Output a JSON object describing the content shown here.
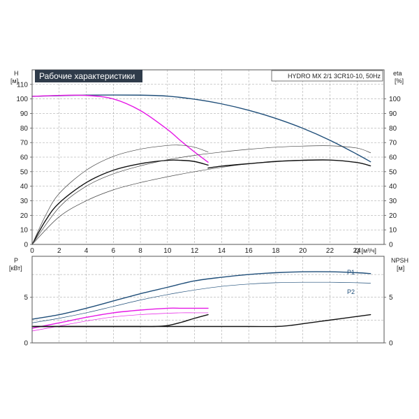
{
  "header": {
    "title": "Рабочие характеристики",
    "model": "HYDRO MX 2/1 3CR10-10, 50Hz"
  },
  "colors": {
    "frame": "#555555",
    "grid": "#9a9a9a",
    "title_bg": "#2f3b4a",
    "title_fg": "#ffffff",
    "blue": "#1f4e79",
    "magenta": "#e619e6",
    "black": "#111111",
    "thin": "#444444"
  },
  "chart_data": [
    {
      "type": "line",
      "title": "Рабочие характеристики",
      "subtitle": "HYDRO MX 2/1 3CR10-10, 50Hz",
      "xlabel": "Q [м³/ч]",
      "ylabel_left": [
        "H",
        "[м]"
      ],
      "ylabel_right": [
        "eta",
        "[%]"
      ],
      "xlim": [
        0,
        26
      ],
      "ylim": [
        0,
        120
      ],
      "grid": true,
      "x_ticks": [
        "0",
        "2",
        "4",
        "6",
        "8",
        "10",
        "12",
        "14",
        "16",
        "18",
        "20",
        "22",
        "24"
      ],
      "y_ticks_left": [
        "0",
        "10",
        "20",
        "30",
        "40",
        "50",
        "60",
        "70",
        "80",
        "90",
        "100",
        "110"
      ],
      "y_ticks_right": [
        "0",
        "10",
        "20",
        "30",
        "40",
        "50",
        "60",
        "70",
        "80",
        "90",
        "100"
      ],
      "series": [
        {
          "color": "blue",
          "width": 1.4,
          "x": [
            0,
            4,
            8,
            10,
            12,
            14,
            16,
            18,
            20,
            22,
            24,
            25
          ],
          "y": [
            101.8,
            102.6,
            102.6,
            101.9,
            99.8,
            96.6,
            92.2,
            86.6,
            79.8,
            71.6,
            62.0,
            56.8
          ]
        },
        {
          "color": "magenta",
          "width": 1.4,
          "x": [
            0,
            2,
            4,
            6,
            8,
            10,
            11,
            12,
            13
          ],
          "y": [
            101.8,
            102.4,
            102.4,
            100.0,
            92.0,
            79.0,
            71.0,
            63.5,
            56.5
          ]
        },
        {
          "color": "black",
          "width": 1.4,
          "x": [
            0,
            1,
            2,
            4,
            6,
            8,
            10,
            11,
            12,
            13
          ],
          "y": [
            0,
            16.5,
            28.5,
            42.5,
            51.0,
            55.5,
            57.8,
            57.8,
            57.0,
            54.5
          ]
        },
        {
          "color": "thin",
          "width": 0.7,
          "x": [
            0,
            1,
            2,
            4,
            6,
            8,
            10,
            11,
            12,
            13
          ],
          "y": [
            0,
            20.0,
            35.0,
            51.0,
            60.5,
            65.5,
            68.0,
            68.2,
            66.8,
            63.5
          ]
        },
        {
          "color": "thin",
          "width": 0.7,
          "x": [
            0,
            2,
            4,
            6,
            8,
            10,
            12,
            14,
            16,
            18,
            20,
            22,
            24,
            25
          ],
          "y": [
            0,
            25.5,
            40.0,
            48.5,
            54.0,
            58.2,
            61.2,
            63.5,
            65.4,
            66.8,
            67.6,
            67.8,
            66.2,
            63.0
          ]
        },
        {
          "color": "thin",
          "width": 0.7,
          "x": [
            0,
            2,
            4,
            6,
            8,
            10,
            12,
            14,
            16,
            18,
            20,
            22,
            24,
            25
          ],
          "y": [
            0,
            19.0,
            30.0,
            37.5,
            42.5,
            46.5,
            50.0,
            53.0,
            55.5,
            57.2,
            58.0,
            58.0,
            56.3,
            54.0
          ]
        },
        {
          "color": "black",
          "width": 1.4,
          "x": [
            13,
            14,
            16,
            18,
            20,
            22,
            24,
            25
          ],
          "y": [
            52.5,
            53.8,
            55.5,
            57.0,
            57.8,
            58.0,
            56.3,
            54.0
          ]
        }
      ]
    },
    {
      "type": "line",
      "xlim": [
        0,
        26
      ],
      "ylim": [
        0,
        9.5
      ],
      "grid": true,
      "ylabel_left": [
        "P",
        "[кВт]"
      ],
      "ylabel_right": [
        "NPSH",
        "[м]"
      ],
      "y_ticks_left": [
        "0",
        "5"
      ],
      "y_ticks_right": [
        "0",
        "5"
      ],
      "series": [
        {
          "name": "P1",
          "color": "blue",
          "width": 1.4,
          "x": [
            0,
            2,
            4,
            6,
            8,
            10,
            12,
            14,
            16,
            18,
            20,
            22,
            24,
            25
          ],
          "y": [
            2.6,
            3.1,
            3.8,
            4.6,
            5.4,
            6.1,
            6.8,
            7.2,
            7.5,
            7.7,
            7.8,
            7.8,
            7.7,
            7.6
          ]
        },
        {
          "name": "P2",
          "color": "blue",
          "width": 0.7,
          "x": [
            0,
            2,
            4,
            6,
            8,
            10,
            12,
            14,
            16,
            18,
            20,
            22,
            24,
            25
          ],
          "y": [
            2.2,
            2.7,
            3.3,
            4.0,
            4.7,
            5.3,
            5.8,
            6.2,
            6.45,
            6.6,
            6.65,
            6.65,
            6.6,
            6.55
          ]
        },
        {
          "color": "magenta",
          "width": 1.4,
          "x": [
            0,
            2,
            4,
            6,
            8,
            10,
            11,
            12,
            13
          ],
          "y": [
            1.6,
            2.2,
            2.8,
            3.3,
            3.6,
            3.8,
            3.8,
            3.8,
            3.8
          ]
        },
        {
          "color": "magenta",
          "width": 0.7,
          "x": [
            0,
            2,
            4,
            6,
            8,
            10,
            11,
            12,
            13
          ],
          "y": [
            1.3,
            1.85,
            2.4,
            2.85,
            3.1,
            3.25,
            3.3,
            3.3,
            3.3
          ]
        },
        {
          "color": "black",
          "width": 1.4,
          "x": [
            0,
            4,
            8,
            9,
            10,
            11,
            12,
            13
          ],
          "y": [
            1.8,
            1.8,
            1.8,
            1.8,
            1.9,
            2.25,
            2.7,
            3.1
          ]
        },
        {
          "color": "black",
          "width": 1.4,
          "x": [
            0,
            4,
            8,
            12,
            16,
            18,
            19,
            20,
            22,
            24,
            25
          ],
          "y": [
            1.8,
            1.8,
            1.8,
            1.8,
            1.8,
            1.8,
            1.9,
            2.1,
            2.5,
            2.9,
            3.1
          ]
        }
      ]
    }
  ]
}
